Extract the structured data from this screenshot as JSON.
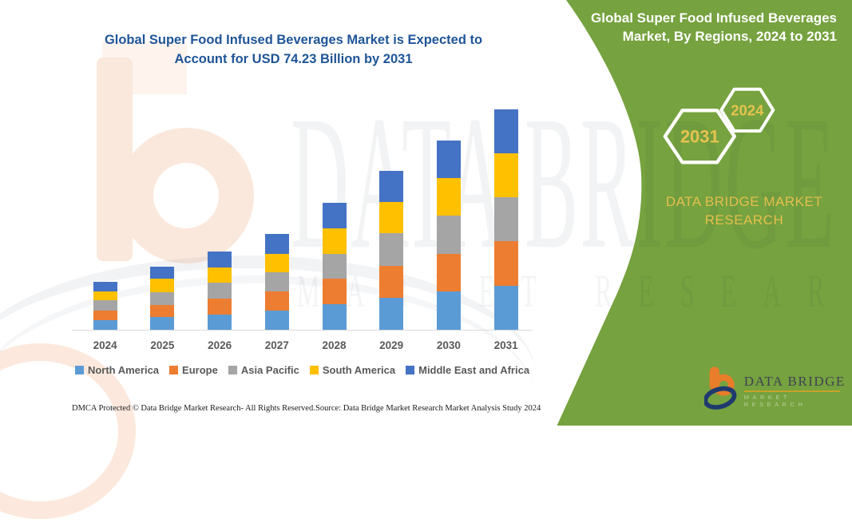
{
  "left_panel": {
    "title_line1": "Global Super Food Infused Beverages Market is Expected to",
    "title_line2": "Account for USD 74.23 Billion by 2031",
    "title_color": "#1F5597"
  },
  "chart_data": {
    "type": "bar",
    "stacked": true,
    "title": "Global Super Food Infused Beverages Market is Expected to Account for USD 74.23 Billion by 2031",
    "unit": "USD Billion",
    "categories": [
      "2024",
      "2025",
      "2026",
      "2027",
      "2028",
      "2029",
      "2030",
      "2031"
    ],
    "series": [
      {
        "name": "North America",
        "color": "#5B9BD5",
        "values": [
          3.3,
          4.4,
          5.2,
          6.4,
          8.5,
          10.9,
          13.0,
          14.9
        ]
      },
      {
        "name": "Europe",
        "color": "#ED7D31",
        "values": [
          3.2,
          3.9,
          5.3,
          6.5,
          8.7,
          10.6,
          12.7,
          15.0
        ]
      },
      {
        "name": "Asia Pacific",
        "color": "#A5A5A5",
        "values": [
          3.4,
          4.3,
          5.4,
          6.4,
          8.3,
          11.0,
          12.7,
          14.8
        ]
      },
      {
        "name": "South America",
        "color": "#FFC000",
        "values": [
          2.9,
          4.5,
          5.0,
          6.3,
          8.7,
          10.6,
          12.7,
          14.8
        ]
      },
      {
        "name": "Middle East and Africa",
        "color": "#4472C4",
        "values": [
          3.4,
          4.2,
          5.5,
          6.7,
          8.6,
          10.5,
          12.7,
          14.73
        ]
      }
    ],
    "totals": [
      16.2,
      21.3,
      26.4,
      32.3,
      42.8,
      53.6,
      63.8,
      74.23
    ],
    "ylim": [
      0,
      74.23
    ],
    "grid": false,
    "axis_line_color": "#D9D9D9",
    "legend_position": "bottom"
  },
  "footer": {
    "dmca": "DMCA Protected © Data Bridge Market Research-  All Rights Reserved.",
    "source": "Source: Data Bridge Market Research  Market Analysis Study 2024"
  },
  "right_panel": {
    "bg_color": "#76A23F",
    "title_line1": "Global Super Food Infused Beverages",
    "title_line2": "Market, By Regions, 2024 to 2031",
    "hexagons": [
      {
        "label": "2031"
      },
      {
        "label": "2024"
      }
    ],
    "brand_line1": "DATA BRIDGE MARKET",
    "brand_line2": "RESEARCH",
    "accent_color": "#E4BF4C",
    "logo": {
      "name": "DATA BRIDGE",
      "sub": "MARKET RESEARCH"
    }
  },
  "watermark": {
    "line1": "DATA BRIDGE",
    "line2": "MARKET RESEARCH"
  }
}
